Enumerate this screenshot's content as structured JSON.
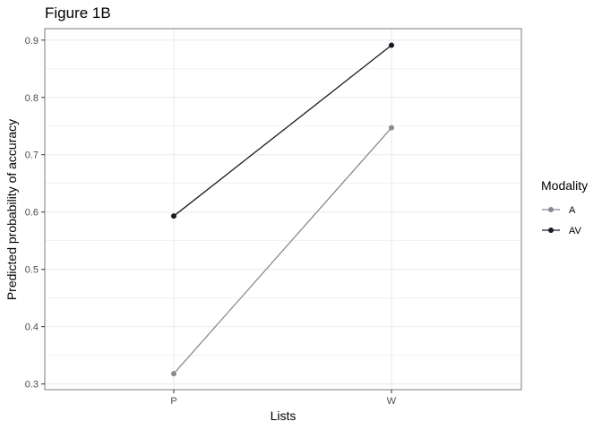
{
  "chart_data": {
    "type": "line",
    "title": "Figure 1B",
    "xlabel": "Lists",
    "ylabel": "Predicted probability of accuracy",
    "categories": [
      "P",
      "W"
    ],
    "ylim": [
      0.29,
      0.92
    ],
    "yticks": [
      "0.3",
      "0.4",
      "0.5",
      "0.6",
      "0.7",
      "0.8",
      "0.9"
    ],
    "grid": true,
    "legend": {
      "title": "Modality",
      "position": "right"
    },
    "series": [
      {
        "name": "A",
        "values": [
          0.318,
          0.747
        ],
        "color": "#868b94"
      },
      {
        "name": "AV",
        "values": [
          0.593,
          0.891
        ],
        "color": "#171a24"
      }
    ]
  },
  "colors": {
    "grid": "#ebebeb",
    "panel_border": "#888888",
    "tick": "#333333"
  }
}
